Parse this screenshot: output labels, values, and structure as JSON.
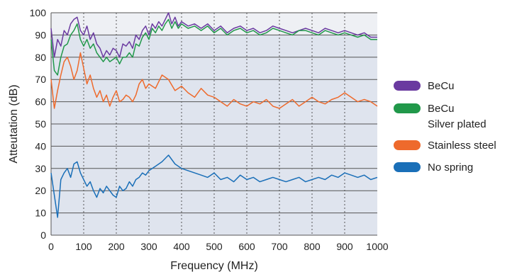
{
  "chart_data": {
    "type": "line",
    "title": "",
    "xlabel": "Frequency (MHz)",
    "ylabel": "Atteutation (dB)",
    "xlim": [
      0,
      1000
    ],
    "ylim": [
      0,
      100
    ],
    "xticks": [
      0,
      100,
      200,
      300,
      400,
      500,
      600,
      700,
      800,
      900,
      1000
    ],
    "yticks": [
      0,
      10,
      20,
      30,
      40,
      50,
      60,
      70,
      80,
      90,
      100
    ],
    "grid": "horizontal solid, vertical dotted",
    "legend_position": "right",
    "colors": {
      "plot_background": "#dfe4ee",
      "top_band": "#eef0f4",
      "grid": "#555555"
    },
    "series": [
      {
        "name": "BeCu",
        "color": "#6a3aa0",
        "x": [
          0,
          10,
          20,
          30,
          40,
          50,
          60,
          70,
          80,
          90,
          100,
          110,
          120,
          130,
          140,
          150,
          160,
          170,
          180,
          190,
          200,
          210,
          220,
          230,
          240,
          250,
          260,
          270,
          280,
          290,
          300,
          310,
          320,
          330,
          340,
          350,
          360,
          370,
          380,
          390,
          400,
          420,
          440,
          460,
          480,
          500,
          520,
          540,
          560,
          580,
          600,
          620,
          640,
          660,
          680,
          700,
          720,
          740,
          760,
          780,
          800,
          820,
          840,
          860,
          880,
          900,
          920,
          940,
          960,
          980,
          1000
        ],
        "values": [
          93,
          80,
          88,
          85,
          92,
          90,
          95,
          97,
          98,
          92,
          90,
          94,
          88,
          91,
          86,
          84,
          80,
          83,
          81,
          84,
          83,
          80,
          86,
          85,
          87,
          84,
          90,
          88,
          92,
          94,
          90,
          95,
          93,
          96,
          94,
          97,
          100,
          95,
          98,
          94,
          96,
          94,
          95,
          93,
          95,
          92,
          94,
          91,
          93,
          94,
          92,
          93,
          91,
          92,
          94,
          93,
          92,
          91,
          92,
          93,
          92,
          91,
          93,
          92,
          91,
          92,
          91,
          90,
          91,
          89,
          89
        ]
      },
      {
        "name": "BeCu Silver plated",
        "color": "#21984a",
        "x": [
          0,
          10,
          20,
          30,
          40,
          50,
          60,
          70,
          80,
          90,
          100,
          110,
          120,
          130,
          140,
          150,
          160,
          170,
          180,
          190,
          200,
          210,
          220,
          230,
          240,
          250,
          260,
          270,
          280,
          290,
          300,
          310,
          320,
          330,
          340,
          350,
          360,
          370,
          380,
          390,
          400,
          420,
          440,
          460,
          480,
          500,
          520,
          540,
          560,
          580,
          600,
          620,
          640,
          660,
          680,
          700,
          720,
          740,
          760,
          780,
          800,
          820,
          840,
          860,
          880,
          900,
          920,
          940,
          960,
          980,
          1000
        ],
        "values": [
          88,
          74,
          72,
          80,
          85,
          86,
          90,
          92,
          95,
          88,
          85,
          88,
          84,
          86,
          82,
          80,
          78,
          80,
          78,
          79,
          80,
          77,
          80,
          80,
          82,
          80,
          86,
          85,
          89,
          91,
          88,
          93,
          91,
          94,
          92,
          95,
          97,
          93,
          96,
          93,
          95,
          93,
          94,
          92,
          94,
          91,
          93,
          90,
          92,
          93,
          91,
          92,
          90,
          91,
          93,
          92,
          91,
          90,
          92,
          92,
          91,
          90,
          92,
          91,
          90,
          91,
          90,
          89,
          90,
          88,
          88
        ]
      },
      {
        "name": "Stainless steel",
        "color": "#ee6a2c",
        "x": [
          0,
          10,
          20,
          30,
          40,
          50,
          60,
          70,
          80,
          90,
          100,
          110,
          120,
          130,
          140,
          150,
          160,
          170,
          180,
          190,
          200,
          210,
          220,
          230,
          240,
          250,
          260,
          270,
          280,
          290,
          300,
          320,
          340,
          360,
          380,
          400,
          420,
          440,
          460,
          480,
          500,
          520,
          540,
          560,
          580,
          600,
          620,
          640,
          660,
          680,
          700,
          720,
          740,
          760,
          780,
          800,
          820,
          840,
          860,
          880,
          900,
          920,
          940,
          960,
          980,
          1000
        ],
        "values": [
          70,
          57,
          65,
          72,
          78,
          80,
          76,
          70,
          74,
          82,
          75,
          68,
          72,
          66,
          62,
          65,
          60,
          63,
          58,
          62,
          65,
          60,
          61,
          63,
          62,
          60,
          63,
          68,
          70,
          66,
          68,
          66,
          72,
          70,
          65,
          67,
          64,
          62,
          66,
          63,
          62,
          60,
          58,
          61,
          59,
          58,
          60,
          59,
          61,
          58,
          57,
          59,
          61,
          58,
          60,
          62,
          60,
          59,
          61,
          62,
          64,
          62,
          60,
          61,
          60,
          58
        ]
      },
      {
        "name": "No spring",
        "color": "#1a6fb8",
        "x": [
          0,
          10,
          20,
          30,
          40,
          50,
          60,
          70,
          80,
          90,
          100,
          110,
          120,
          130,
          140,
          150,
          160,
          170,
          180,
          190,
          200,
          210,
          220,
          230,
          240,
          250,
          260,
          270,
          280,
          290,
          300,
          320,
          340,
          360,
          380,
          400,
          420,
          440,
          460,
          480,
          500,
          520,
          540,
          560,
          580,
          600,
          620,
          640,
          660,
          680,
          700,
          720,
          740,
          760,
          780,
          800,
          820,
          840,
          860,
          880,
          900,
          920,
          940,
          960,
          980,
          1000
        ],
        "values": [
          28,
          18,
          8,
          25,
          28,
          30,
          26,
          32,
          33,
          28,
          25,
          22,
          24,
          20,
          17,
          21,
          19,
          22,
          20,
          18,
          17,
          22,
          20,
          21,
          24,
          22,
          25,
          26,
          28,
          27,
          29,
          31,
          33,
          36,
          32,
          30,
          29,
          28,
          27,
          26,
          28,
          25,
          26,
          24,
          27,
          25,
          26,
          24,
          25,
          26,
          25,
          24,
          25,
          26,
          24,
          25,
          26,
          25,
          27,
          26,
          28,
          27,
          26,
          27,
          25,
          26
        ]
      }
    ],
    "legend": [
      {
        "lines": [
          "BeCu"
        ],
        "color": "#6a3aa0"
      },
      {
        "lines": [
          "BeCu",
          "Silver plated"
        ],
        "color": "#21984a"
      },
      {
        "lines": [
          "Stainless steel"
        ],
        "color": "#ee6a2c"
      },
      {
        "lines": [
          "No spring"
        ],
        "color": "#1a6fb8"
      }
    ]
  }
}
